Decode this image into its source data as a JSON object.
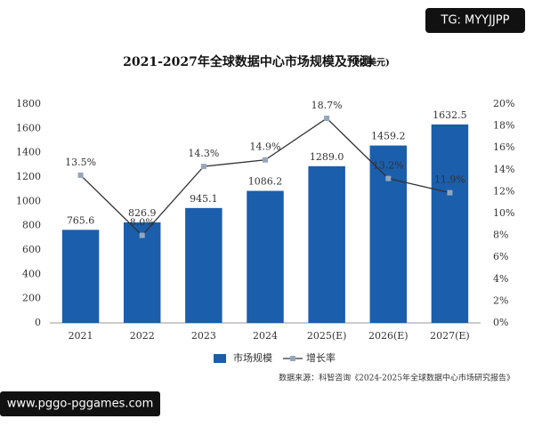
{
  "chart_data": {
    "type": "bar",
    "title": "2021-2027年全球数据中心市场规模及预测",
    "unit": "(亿美元)",
    "source": "数据来源：科智咨询《2024-2025年全球数据中心市场研究报告》",
    "categories": [
      "2021",
      "2022",
      "2023",
      "2024",
      "2025(E)",
      "2026(E)",
      "2027(E)"
    ],
    "series": [
      {
        "name": "市场规模",
        "type": "bar",
        "color": "#1b5eab",
        "values": [
          765.6,
          826.9,
          945.1,
          1086.2,
          1289.0,
          1459.2,
          1632.5
        ],
        "value_labels": [
          "765.6",
          "826.9",
          "945.1",
          "1086.2",
          "1289.0",
          "1459.2",
          "1632.5"
        ]
      },
      {
        "name": "增长率",
        "type": "line",
        "axis": "y2",
        "color": "#333333",
        "marker_color": "#93a6bd",
        "values": [
          13.5,
          8.0,
          14.3,
          14.9,
          18.7,
          13.2,
          11.9
        ],
        "value_labels": [
          "13.5%",
          "8.0%",
          "14.3%",
          "14.9%",
          "18.7%",
          "13.2%",
          "11.9%"
        ]
      }
    ],
    "ylim": [
      0,
      1800
    ],
    "yticks": [
      0,
      200,
      400,
      600,
      800,
      1000,
      1200,
      1400,
      1600,
      1800
    ],
    "y2lim": [
      0,
      20
    ],
    "y2ticks": [
      {
        "value": 0,
        "label": "0%"
      },
      {
        "value": 2,
        "label": "2%"
      },
      {
        "value": 4,
        "label": "4%"
      },
      {
        "value": 6,
        "label": "6%"
      },
      {
        "value": 8,
        "label": "8%"
      },
      {
        "value": 10,
        "label": "10%"
      },
      {
        "value": 12,
        "label": "12%"
      },
      {
        "value": 14,
        "label": "14%"
      },
      {
        "value": 16,
        "label": "16%"
      },
      {
        "value": 18,
        "label": "18%"
      },
      {
        "value": 20,
        "label": "20%"
      }
    ],
    "grid": false,
    "legend": "bottom"
  },
  "watermarks": [
    "TG: MYYJJPP",
    "www.pggo-pggames.com"
  ]
}
